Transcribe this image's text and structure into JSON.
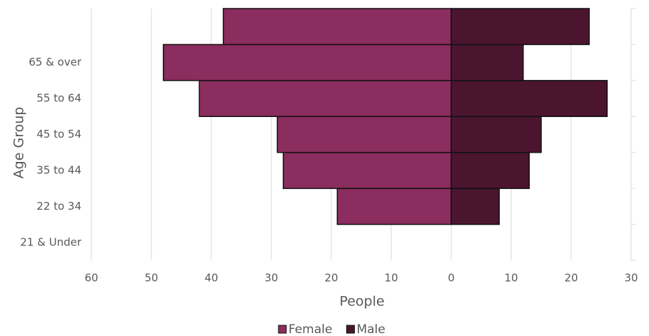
{
  "chart_data": {
    "type": "bar",
    "orientation": "horizontal",
    "stacked": false,
    "x_label": "People",
    "y_label": "Age Group",
    "categories": [
      "21 & Under",
      "22 to 34",
      "35 to 44",
      "45 to 54",
      "55 to 64",
      "65 & over",
      null
    ],
    "series": [
      {
        "name": "Female",
        "color": "#8b2d5e",
        "values": [
          0,
          -19,
          -28,
          -29,
          -42,
          -48,
          -38
        ]
      },
      {
        "name": "Male",
        "color": "#4b1530",
        "values": [
          0,
          8,
          13,
          15,
          26,
          12,
          23
        ]
      }
    ],
    "xlim": [
      -60,
      30
    ],
    "xticks": [
      {
        "value": -60,
        "label": "60"
      },
      {
        "value": -50,
        "label": "50"
      },
      {
        "value": -40,
        "label": "40"
      },
      {
        "value": -30,
        "label": "30"
      },
      {
        "value": -20,
        "label": "20"
      },
      {
        "value": -10,
        "label": "10"
      },
      0,
      10,
      20,
      30
    ],
    "grid": true,
    "legend": "bottom"
  }
}
